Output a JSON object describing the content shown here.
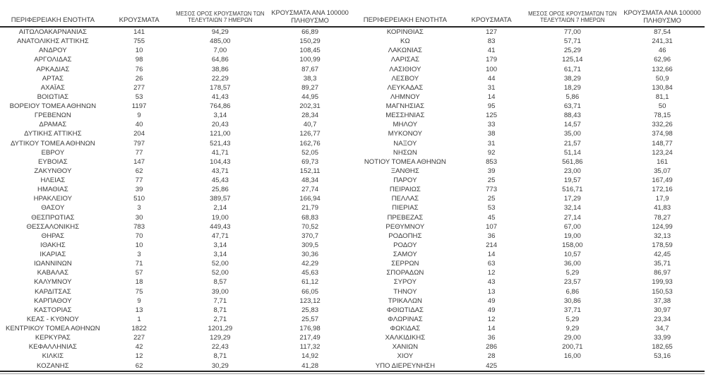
{
  "table": {
    "headers": [
      "ΠΕΡΙΦΕΡΕΙΑΚΗ ΕΝΟΤΗΤΑ",
      "ΚΡΟΥΣΜΑΤΑ",
      "ΜΕΣΟΣ ΟΡΟΣ ΚΡΟΥΣΜΑΤΩΝ ΤΩΝ ΤΕΛΕΥΤΑΙΩΝ 7 ΗΜΕΡΩΝ",
      "ΚΡΟΥΣΜΑΤΑ ΑΝΑ 100000 ΠΛΗΘΥΣΜΟ"
    ],
    "left_rows": [
      [
        "ΑΙΤΩΛΟΑΚΑΡΝΑΝΙΑΣ",
        "141",
        "94,29",
        "66,89"
      ],
      [
        "ΑΝΑΤΟΛΙΚΗΣ ΑΤΤΙΚΗΣ",
        "755",
        "485,00",
        "150,29"
      ],
      [
        "ΑΝΔΡΟΥ",
        "10",
        "7,00",
        "108,45"
      ],
      [
        "ΑΡΓΟΛΙΔΑΣ",
        "98",
        "64,86",
        "100,99"
      ],
      [
        "ΑΡΚΑΔΙΑΣ",
        "76",
        "38,86",
        "87,67"
      ],
      [
        "ΑΡΤΑΣ",
        "26",
        "22,29",
        "38,3"
      ],
      [
        "ΑΧΑΪΑΣ",
        "277",
        "178,57",
        "89,27"
      ],
      [
        "ΒΟΙΩΤΙΑΣ",
        "53",
        "41,43",
        "44,95"
      ],
      [
        "ΒΟΡΕΙΟΥ ΤΟΜΕΑ ΑΘΗΝΩΝ",
        "1197",
        "764,86",
        "202,31"
      ],
      [
        "ΓΡΕΒΕΝΩΝ",
        "9",
        "3,14",
        "28,34"
      ],
      [
        "ΔΡΑΜΑΣ",
        "40",
        "20,43",
        "40,7"
      ],
      [
        "ΔΥΤΙΚΗΣ ΑΤΤΙΚΗΣ",
        "204",
        "121,00",
        "126,77"
      ],
      [
        "ΔΥΤΙΚΟΥ ΤΟΜΕΑ ΑΘΗΝΩΝ",
        "797",
        "521,43",
        "162,76"
      ],
      [
        "ΕΒΡΟΥ",
        "77",
        "41,71",
        "52,05"
      ],
      [
        "ΕΥΒΟΙΑΣ",
        "147",
        "104,43",
        "69,73"
      ],
      [
        "ΖΑΚΥΝΘΟΥ",
        "62",
        "43,71",
        "152,11"
      ],
      [
        "ΗΛΕΙΑΣ",
        "77",
        "45,43",
        "48,34"
      ],
      [
        "ΗΜΑΘΙΑΣ",
        "39",
        "25,86",
        "27,74"
      ],
      [
        "ΗΡΑΚΛΕΙΟΥ",
        "510",
        "389,57",
        "166,94"
      ],
      [
        "ΘΑΣΟΥ",
        "3",
        "2,14",
        "21,79"
      ],
      [
        "ΘΕΣΠΡΩΤΙΑΣ",
        "30",
        "19,00",
        "68,83"
      ],
      [
        "ΘΕΣΣΑΛΟΝΙΚΗΣ",
        "783",
        "449,43",
        "70,52"
      ],
      [
        "ΘΗΡΑΣ",
        "70",
        "47,71",
        "370,7"
      ],
      [
        "ΙΘΑΚΗΣ",
        "10",
        "3,14",
        "309,5"
      ],
      [
        "ΙΚΑΡΙΑΣ",
        "3",
        "3,14",
        "30,36"
      ],
      [
        "ΙΩΑΝΝΙΝΩΝ",
        "71",
        "52,00",
        "42,29"
      ],
      [
        "ΚΑΒΑΛΑΣ",
        "57",
        "52,00",
        "45,63"
      ],
      [
        "ΚΑΛΥΜΝΟΥ",
        "18",
        "8,57",
        "61,12"
      ],
      [
        "ΚΑΡΔΙΤΣΑΣ",
        "75",
        "39,00",
        "66,05"
      ],
      [
        "ΚΑΡΠΑΘΟΥ",
        "9",
        "7,71",
        "123,12"
      ],
      [
        "ΚΑΣΤΟΡΙΑΣ",
        "13",
        "8,71",
        "25,83"
      ],
      [
        "ΚΕΑΣ - ΚΥΘΝΟΥ",
        "1",
        "2,71",
        "25,57"
      ],
      [
        "ΚΕΝΤΡΙΚΟΥ ΤΟΜΕΑ ΑΘΗΝΩΝ",
        "1822",
        "1201,29",
        "176,98"
      ],
      [
        "ΚΕΡΚΥΡΑΣ",
        "227",
        "129,29",
        "217,49"
      ],
      [
        "ΚΕΦΑΛΛΗΝΙΑΣ",
        "42",
        "22,43",
        "117,32"
      ],
      [
        "ΚΙΛΚΙΣ",
        "12",
        "8,71",
        "14,92"
      ],
      [
        "ΚΟΖΑΝΗΣ",
        "62",
        "30,29",
        "41,28"
      ]
    ],
    "right_rows": [
      [
        "ΚΟΡΙΝΘΙΑΣ",
        "127",
        "77,00",
        "87,54"
      ],
      [
        "ΚΩ",
        "83",
        "57,71",
        "241,31"
      ],
      [
        "ΛΑΚΩΝΙΑΣ",
        "41",
        "25,29",
        "46"
      ],
      [
        "ΛΑΡΙΣΑΣ",
        "179",
        "125,14",
        "62,96"
      ],
      [
        "ΛΑΣΙΘΙΟΥ",
        "100",
        "61,71",
        "132,66"
      ],
      [
        "ΛΕΣΒΟΥ",
        "44",
        "38,29",
        "50,9"
      ],
      [
        "ΛΕΥΚΑΔΑΣ",
        "31",
        "18,29",
        "130,84"
      ],
      [
        "ΛΗΜΝΟΥ",
        "14",
        "5,86",
        "81,1"
      ],
      [
        "ΜΑΓΝΗΣΙΑΣ",
        "95",
        "63,71",
        "50"
      ],
      [
        "ΜΕΣΣΗΝΙΑΣ",
        "125",
        "88,43",
        "78,15"
      ],
      [
        "ΜΗΛΟΥ",
        "33",
        "14,57",
        "332,26"
      ],
      [
        "ΜΥΚΟΝΟΥ",
        "38",
        "35,00",
        "374,98"
      ],
      [
        "ΝΑΞΟΥ",
        "31",
        "21,57",
        "148,77"
      ],
      [
        "ΝΗΣΩΝ",
        "92",
        "51,14",
        "123,24"
      ],
      [
        "ΝΟΤΙΟΥ ΤΟΜΕΑ ΑΘΗΝΩΝ",
        "853",
        "561,86",
        "161"
      ],
      [
        "ΞΑΝΘΗΣ",
        "39",
        "23,00",
        "35,07"
      ],
      [
        "ΠΑΡΟΥ",
        "25",
        "19,57",
        "167,49"
      ],
      [
        "ΠΕΙΡΑΙΩΣ",
        "773",
        "516,71",
        "172,16"
      ],
      [
        "ΠΕΛΛΑΣ",
        "25",
        "17,29",
        "17,9"
      ],
      [
        "ΠΙΕΡΙΑΣ",
        "53",
        "32,14",
        "41,83"
      ],
      [
        "ΠΡΕΒΕΖΑΣ",
        "45",
        "27,14",
        "78,27"
      ],
      [
        "ΡΕΘΥΜΝΟΥ",
        "107",
        "67,00",
        "124,99"
      ],
      [
        "ΡΟΔΟΠΗΣ",
        "36",
        "19,00",
        "32,13"
      ],
      [
        "ΡΟΔΟΥ",
        "214",
        "158,00",
        "178,59"
      ],
      [
        "ΣΑΜΟΥ",
        "14",
        "10,57",
        "42,45"
      ],
      [
        "ΣΕΡΡΩΝ",
        "63",
        "36,00",
        "35,71"
      ],
      [
        "ΣΠΟΡΑΔΩΝ",
        "12",
        "5,29",
        "86,97"
      ],
      [
        "ΣΥΡΟΥ",
        "43",
        "23,57",
        "199,93"
      ],
      [
        "ΤΗΝΟΥ",
        "13",
        "6,86",
        "150,53"
      ],
      [
        "ΤΡΙΚΑΛΩΝ",
        "49",
        "30,86",
        "37,38"
      ],
      [
        "ΦΘΙΩΤΙΔΑΣ",
        "49",
        "37,71",
        "30,97"
      ],
      [
        "ΦΛΩΡΙΝΑΣ",
        "12",
        "5,29",
        "23,34"
      ],
      [
        "ΦΩΚΙΔΑΣ",
        "14",
        "9,29",
        "34,7"
      ],
      [
        "ΧΑΛΚΙΔΙΚΗΣ",
        "36",
        "29,00",
        "33,99"
      ],
      [
        "ΧΑΝΙΩΝ",
        "286",
        "200,71",
        "182,65"
      ],
      [
        "ΧΙΟΥ",
        "28",
        "16,00",
        "53,16"
      ],
      [
        "ΥΠΟ ΔΙΕΡΕΥΝΗΣΗ",
        "425",
        "",
        ""
      ]
    ]
  },
  "colors": {
    "text": "#3a3a3a",
    "rule_heavy": "#262626",
    "rule_thin": "#9a9a9a",
    "background": "#ffffff"
  }
}
